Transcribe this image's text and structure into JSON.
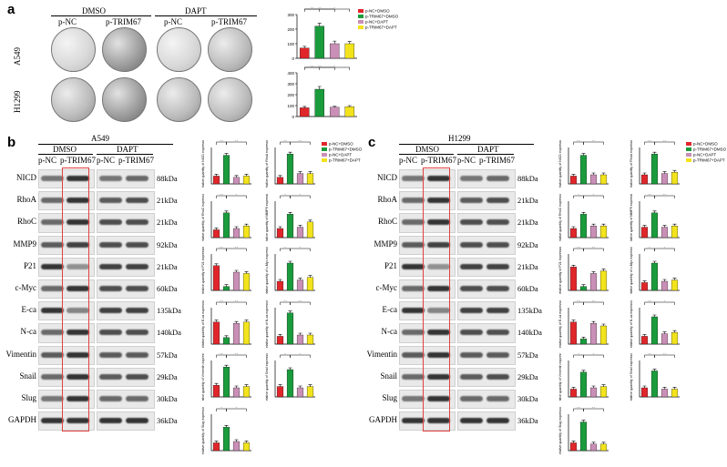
{
  "panel_a": {
    "letter": "a",
    "conditions": [
      "DMSO",
      "DAPT"
    ],
    "groups": [
      "p-NC",
      "p-TRIM67",
      "p-NC",
      "p-TRIM67"
    ],
    "cell_lines": [
      "A549",
      "H1299"
    ],
    "chart_data": [
      {
        "type": "bar",
        "categories": [
          "p-NC DMSO",
          "p-TRIM67 DMSO",
          "p-NC DAPT",
          "p-TRIM67 DAPT"
        ],
        "values": [
          70,
          220,
          100,
          100
        ],
        "ylim": [
          0,
          300
        ],
        "yticks": [
          0,
          100,
          200,
          300
        ],
        "errors": [
          12,
          20,
          18,
          15
        ],
        "significance": [
          "**",
          "*",
          "**"
        ]
      },
      {
        "type": "bar",
        "categories": [
          "p-NC DMSO",
          "p-TRIM67 DMSO",
          "p-NC DAPT",
          "p-TRIM67 DAPT"
        ],
        "values": [
          80,
          250,
          85,
          90
        ],
        "ylim": [
          0,
          400
        ],
        "yticks": [
          0,
          100,
          200,
          300,
          400
        ],
        "errors": [
          12,
          25,
          8,
          10
        ],
        "significance": [
          "**",
          "*",
          "**"
        ]
      }
    ]
  },
  "panel_b": {
    "letter": "b",
    "cell_line": "A549",
    "conditions": [
      "DMSO",
      "DAPT"
    ],
    "groups": [
      "p-NC",
      "p-TRIM67",
      "p-NC",
      "p-TRIM67"
    ],
    "proteins": [
      "NICD",
      "RhoA",
      "RhoC",
      "MMP9",
      "P21",
      "c-Myc",
      "E-ca",
      "N-ca",
      "Vimentin",
      "Snail",
      "Slug",
      "GAPDH"
    ],
    "kda": [
      "88kDa",
      "21kDa",
      "21kDa",
      "92kDa",
      "21kDa",
      "60kDa",
      "135kDa",
      "140kDa",
      "57kDa",
      "29kDa",
      "30kDa",
      "36kDa"
    ],
    "chart_data": [
      {
        "type": "bar",
        "values": [
          0.6,
          2.2,
          0.5,
          0.6
        ],
        "sig": [
          "**",
          "**"
        ]
      },
      {
        "type": "bar",
        "values": [
          0.5,
          2.3,
          0.8,
          0.8
        ],
        "sig": [
          "**",
          "**"
        ]
      },
      {
        "type": "bar",
        "values": [
          0.6,
          1.9,
          0.7,
          0.9
        ],
        "sig": [
          "**",
          "*"
        ]
      },
      {
        "type": "bar",
        "values": [
          0.7,
          1.8,
          0.8,
          1.2
        ],
        "sig": [
          "*",
          "*"
        ]
      },
      {
        "type": "bar",
        "values": [
          1.9,
          0.3,
          1.4,
          1.3
        ],
        "sig": [
          "**",
          "**"
        ]
      },
      {
        "type": "bar",
        "values": [
          0.7,
          2.1,
          0.8,
          1.0
        ],
        "sig": [
          "*",
          "*"
        ]
      },
      {
        "type": "bar",
        "values": [
          1.7,
          0.5,
          1.6,
          1.7
        ],
        "sig": [
          "**",
          "**"
        ]
      },
      {
        "type": "bar",
        "values": [
          0.6,
          2.4,
          0.7,
          0.7
        ],
        "sig": [
          "**",
          "**"
        ]
      },
      {
        "type": "bar",
        "values": [
          0.9,
          2.3,
          0.7,
          0.8
        ],
        "sig": [
          "**",
          "**"
        ]
      },
      {
        "type": "bar",
        "values": [
          0.8,
          2.1,
          0.7,
          0.8
        ],
        "sig": [
          "*",
          "*"
        ]
      },
      {
        "type": "bar",
        "values": [
          0.6,
          1.8,
          0.7,
          0.6
        ],
        "sig": [
          "*",
          "*"
        ]
      }
    ],
    "ylabels": [
      "Relative quantity of NICD expression",
      "Relative quantity of RhoA expression",
      "Relative quantity of RhoC expression",
      "Relative quantity of MMP9 expression",
      "Relative quantity of P21 expression",
      "Relative quantity of c-Myc expression",
      "Relative quantity of E-ca expression",
      "Relative quantity of N-ca expression",
      "Relative quantity of Vimentin expression",
      "Relative quantity of Snail expression",
      "Relative quantity of Slug expression"
    ]
  },
  "panel_c": {
    "letter": "c",
    "cell_line": "H1299",
    "conditions": [
      "DMSO",
      "DAPT"
    ],
    "groups": [
      "p-NC",
      "p-TRIM67",
      "p-NC",
      "p-TRIM67"
    ],
    "proteins": [
      "NICD",
      "RhoA",
      "RhoC",
      "MMP9",
      "P21",
      "c-Myc",
      "E-ca",
      "N-ca",
      "Vimentin",
      "Snail",
      "Slug",
      "GAPDH"
    ],
    "kda": [
      "88kDa",
      "21kDa",
      "21kDa",
      "92kDa",
      "21kDa",
      "60kDa",
      "135kDa",
      "140kDa",
      "57kDa",
      "29kDa",
      "30kDa",
      "36kDa"
    ],
    "chart_data": [
      {
        "type": "bar",
        "values": [
          0.6,
          2.2,
          0.7,
          0.7
        ],
        "sig": [
          "**",
          "**"
        ]
      },
      {
        "type": "bar",
        "values": [
          0.7,
          2.3,
          0.8,
          0.9
        ],
        "sig": [
          "**",
          "**"
        ]
      },
      {
        "type": "bar",
        "values": [
          0.7,
          1.8,
          0.9,
          0.9
        ],
        "sig": [
          "*",
          "*"
        ]
      },
      {
        "type": "bar",
        "values": [
          0.8,
          1.9,
          0.8,
          0.9
        ],
        "sig": [
          "**",
          "**"
        ]
      },
      {
        "type": "bar",
        "values": [
          1.8,
          0.3,
          1.3,
          1.5
        ],
        "sig": [
          "**",
          "**"
        ]
      },
      {
        "type": "bar",
        "values": [
          0.6,
          2.1,
          0.7,
          0.8
        ],
        "sig": [
          "*",
          "*"
        ]
      },
      {
        "type": "bar",
        "values": [
          1.7,
          0.4,
          1.6,
          1.4
        ],
        "sig": [
          "**",
          "**"
        ]
      },
      {
        "type": "bar",
        "values": [
          0.6,
          2.1,
          0.8,
          0.9
        ],
        "sig": [
          "**",
          "*"
        ]
      },
      {
        "type": "bar",
        "values": [
          0.6,
          1.9,
          0.7,
          0.8
        ],
        "sig": [
          "*",
          "*"
        ]
      },
      {
        "type": "bar",
        "values": [
          0.7,
          2.0,
          0.6,
          0.6
        ],
        "sig": [
          "**",
          "**"
        ]
      },
      {
        "type": "bar",
        "values": [
          0.6,
          2.2,
          0.5,
          0.5
        ],
        "sig": [
          "**",
          "**"
        ]
      }
    ],
    "ylabels": [
      "Relative quantity of NICD expression",
      "Relative quantity of RhoA expression",
      "Relative quantity of RhoC expression",
      "Relative quantity of MMP9 expression",
      "Relative quantity of P21 expression",
      "Relative quantity of c-Myc expression",
      "Relative quantity of E-ca expression",
      "Relative quantity of N-ca expression",
      "Relative quantity of Vimentin expression",
      "Relative quantity of Snail expression",
      "Relative quantity of Slug expression"
    ]
  },
  "legend": [
    "p-NC+DMSO",
    "p-TRIM67+DMSO",
    "p-NC+DAPT",
    "p-TRIM67+DAPT"
  ],
  "colors": {
    "red": "#e0262b",
    "green": "#1a9b3c",
    "pink": "#c98fb6",
    "yellow": "#f2e31d",
    "highlight": "#e24040"
  }
}
